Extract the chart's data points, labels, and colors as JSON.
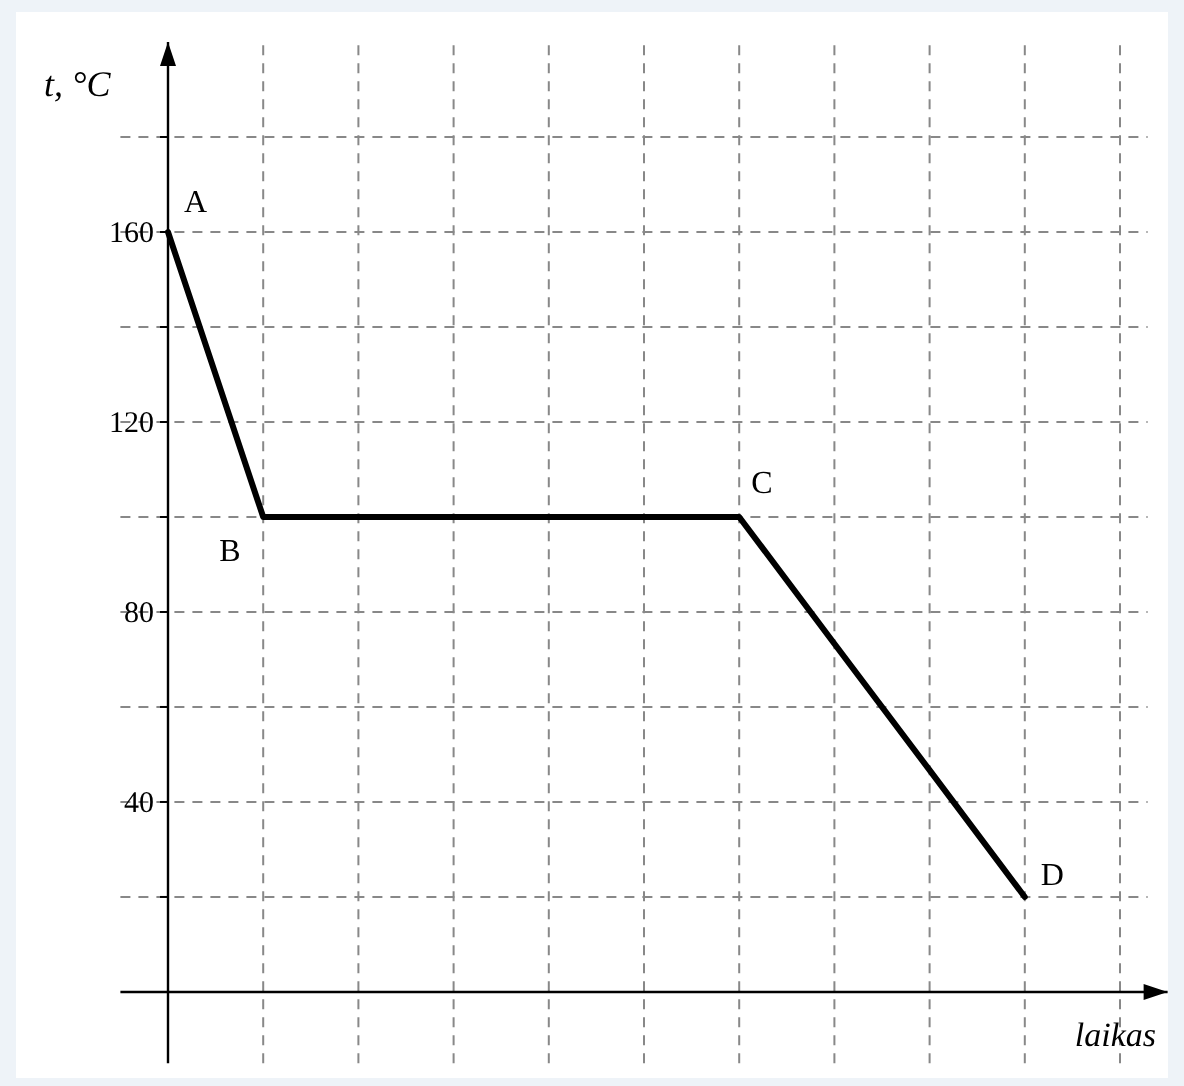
{
  "chart_data": {
    "type": "line",
    "xlabel": "laikas",
    "ylabel": "t, °C",
    "categories": [
      null,
      null,
      null,
      null,
      null,
      null,
      null,
      null,
      null,
      null,
      null
    ],
    "series": [
      {
        "color": "#000000",
        "values": [
          160,
          100,
          100,
          100,
          100,
          100,
          100,
          73.3,
          46.7,
          20,
          null
        ]
      }
    ],
    "ylim": [
      -15,
      200
    ],
    "yticks": [
      {
        "value": 20,
        "label": null
      },
      40,
      {
        "value": 60,
        "label": null
      },
      80,
      {
        "value": 100,
        "label": null
      },
      120,
      {
        "value": 140,
        "label": null
      },
      160,
      {
        "value": 180,
        "label": null
      }
    ],
    "grid": true,
    "marker": "none",
    "line_style": "solid",
    "annotations": [
      "A",
      "B",
      "C",
      "D"
    ]
  }
}
